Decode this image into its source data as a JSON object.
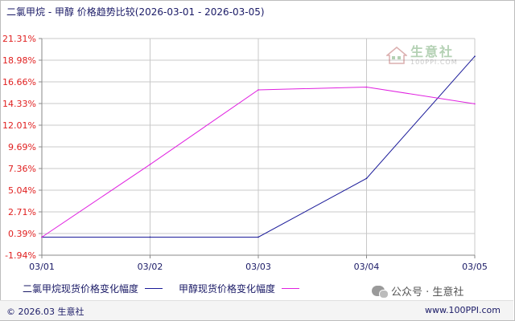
{
  "header": {
    "title": "二氯甲烷 - 甲醇 价格趋势比较(2026-03-01 - 2026-03-05)"
  },
  "watermark": {
    "name": "生意社",
    "url": "100PPI.COM"
  },
  "chart_data": {
    "type": "line",
    "title": "二氯甲烷 - 甲醇 价格趋势比较(2026-03-01 - 2026-03-05)",
    "x": [
      "03/01",
      "03/02",
      "03/03",
      "03/04",
      "03/05"
    ],
    "y_ticks": [
      "21.31%",
      "18.98%",
      "16.66%",
      "14.33%",
      "12.01%",
      "9.69%",
      "7.36%",
      "5.04%",
      "2.71%",
      "0.39%",
      "-1.94%"
    ],
    "ylim": [
      -1.94,
      21.31
    ],
    "grid": true,
    "legend_position": "bottom-left",
    "series": [
      {
        "name": "二氯甲烷现货价格变化幅度",
        "color": "#1a1a99",
        "values": [
          0,
          0,
          0,
          6.3,
          19.4
        ]
      },
      {
        "name": "甲醇现货价格变化幅度",
        "color": "#e020e0",
        "values": [
          0,
          7.8,
          15.8,
          16.1,
          14.3
        ]
      }
    ]
  },
  "footer": {
    "copyright": "© 2026.03 生意社",
    "wechat": "公众号 · 生意社",
    "url": "www.100PPI.com"
  },
  "colors": {
    "axis_label": "#e02020",
    "grid": "#c8c8c8",
    "text": "#1a1a66"
  }
}
